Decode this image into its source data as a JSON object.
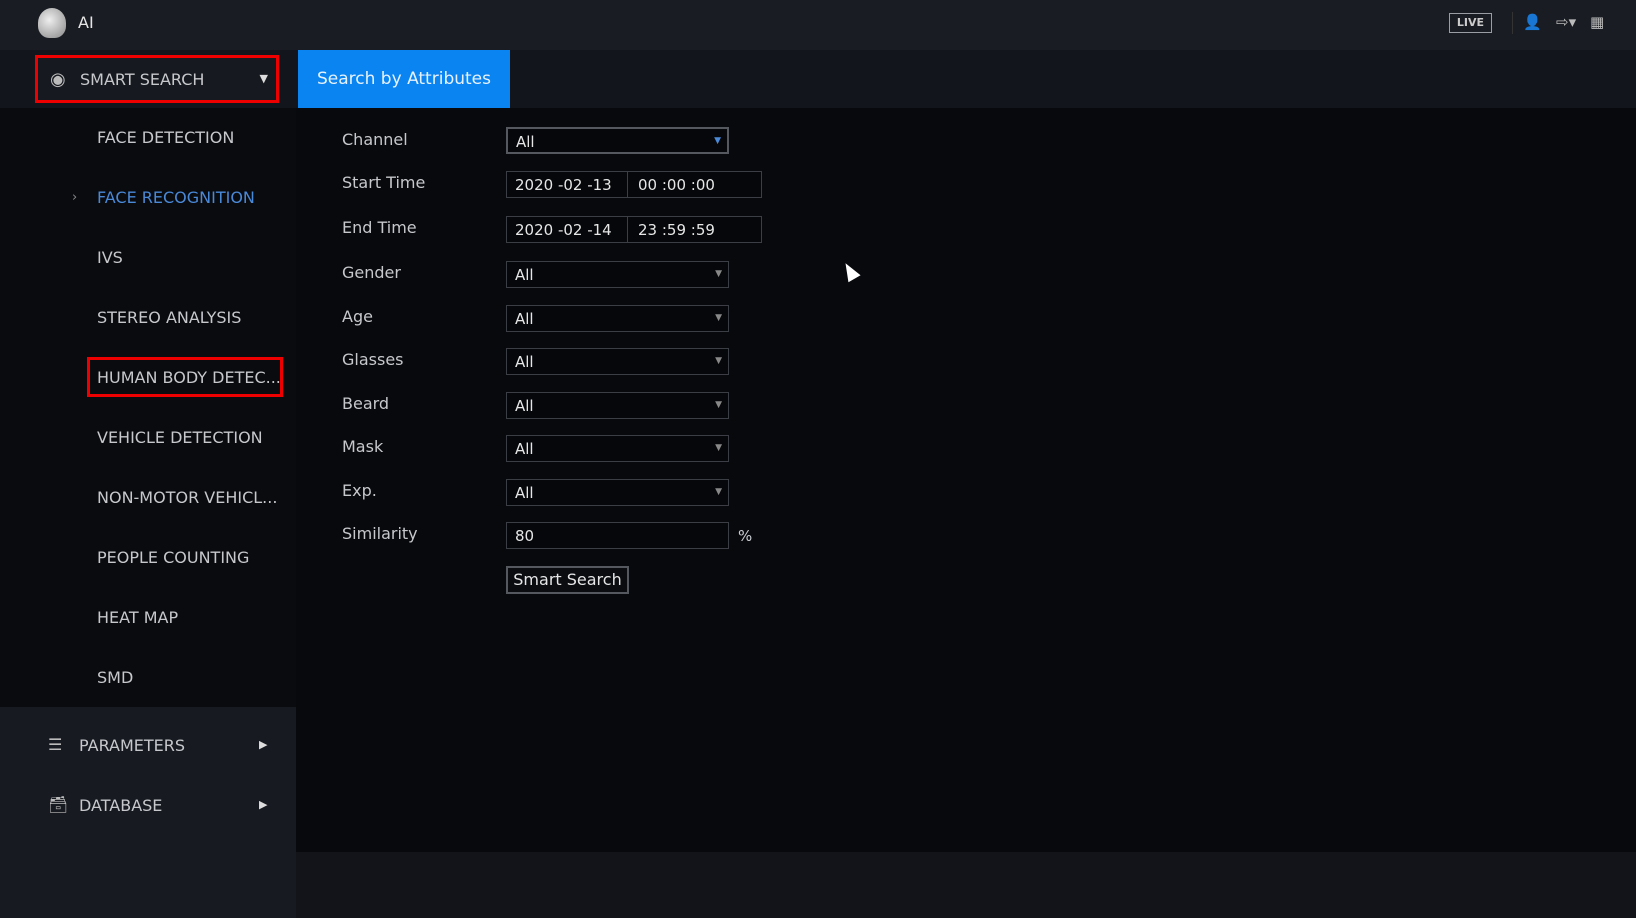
{
  "header": {
    "title": "AI",
    "live_label": "LIVE",
    "icons": [
      "user-icon",
      "logout-icon",
      "grid-icon"
    ]
  },
  "tabs": {
    "menu_label": "SMART SEARCH",
    "active_tab": "Search by Attributes",
    "accent": "#0a84f0"
  },
  "sidebar": {
    "items": [
      {
        "label": "FACE DETECTION"
      },
      {
        "label": "FACE RECOGNITION",
        "active": true
      },
      {
        "label": "IVS"
      },
      {
        "label": "STEREO ANALYSIS"
      },
      {
        "label": "HUMAN BODY DETEC..."
      },
      {
        "label": "VEHICLE DETECTION"
      },
      {
        "label": "NON-MOTOR VEHICL..."
      },
      {
        "label": "PEOPLE COUNTING"
      },
      {
        "label": "HEAT MAP"
      },
      {
        "label": "SMD"
      }
    ],
    "sections": [
      {
        "label": "PARAMETERS"
      },
      {
        "label": "DATABASE"
      }
    ]
  },
  "form": {
    "channel": {
      "label": "Channel",
      "value": "All"
    },
    "start_time": {
      "label": "Start Time",
      "date": "2020 -02 -13",
      "time": "00 :00 :00"
    },
    "end_time": {
      "label": "End Time",
      "date": "2020 -02 -14",
      "time": "23 :59 :59"
    },
    "gender": {
      "label": "Gender",
      "value": "All"
    },
    "age": {
      "label": "Age",
      "value": "All"
    },
    "glasses": {
      "label": "Glasses",
      "value": "All"
    },
    "beard": {
      "label": "Beard",
      "value": "All"
    },
    "mask": {
      "label": "Mask",
      "value": "All"
    },
    "exp": {
      "label": "Exp.",
      "value": "All"
    },
    "similarity": {
      "label": "Similarity",
      "value": "80",
      "unit": "%"
    },
    "search_button": "Smart Search"
  }
}
